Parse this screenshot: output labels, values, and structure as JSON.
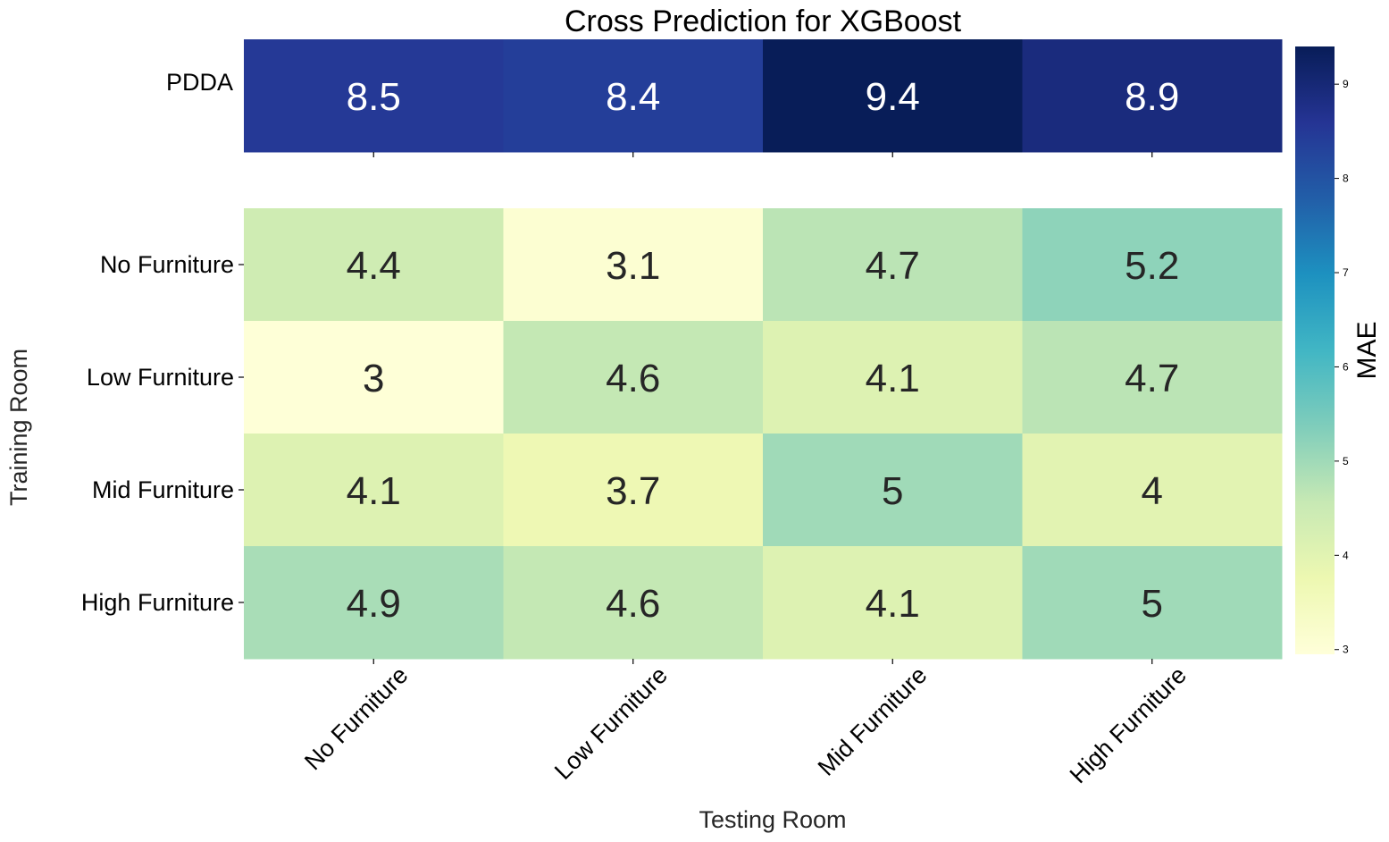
{
  "chart_data": {
    "type": "heatmap",
    "title": "Cross Prediction for XGBoost",
    "xlabel": "Testing Room",
    "ylabel": "Training Room",
    "x_categories": [
      "No Furniture",
      "Low Furniture",
      "Mid Furniture",
      "High Furniture"
    ],
    "top_panel": {
      "rows": [
        "PDDA"
      ],
      "values": [
        [
          8.5,
          8.4,
          9.4,
          8.9
        ]
      ],
      "cell_labels": [
        [
          "8.5",
          "8.4",
          "9.4",
          "8.9"
        ]
      ]
    },
    "main_panel": {
      "rows": [
        "No Furniture",
        "Low Furniture",
        "Mid Furniture",
        "High Furniture"
      ],
      "values": [
        [
          4.4,
          3.1,
          4.7,
          5.2
        ],
        [
          3.0,
          4.6,
          4.1,
          4.7
        ],
        [
          4.1,
          3.7,
          5.0,
          4.0
        ],
        [
          4.9,
          4.6,
          4.1,
          5.0
        ]
      ],
      "cell_labels": [
        [
          "4.4",
          "3.1",
          "4.7",
          "5.2"
        ],
        [
          "3",
          "4.6",
          "4.1",
          "4.7"
        ],
        [
          "4.1",
          "3.7",
          "5",
          "4"
        ],
        [
          "4.9",
          "4.6",
          "4.1",
          "5"
        ]
      ]
    },
    "colorbar": {
      "label": "MAE",
      "range": [
        2.95,
        9.4
      ],
      "ticks": [
        "3",
        "4",
        "5",
        "6",
        "7",
        "8",
        "9"
      ],
      "colormap": "YlGnBu",
      "stops": [
        "#ffffd9",
        "#edf8b1",
        "#c7e9b4",
        "#7fcdbb",
        "#41b6c4",
        "#1d91c0",
        "#225ea8",
        "#253494",
        "#081d58"
      ]
    },
    "text_colors": {
      "light_cell": "#262626",
      "dark_cell": "#ffffff"
    }
  }
}
